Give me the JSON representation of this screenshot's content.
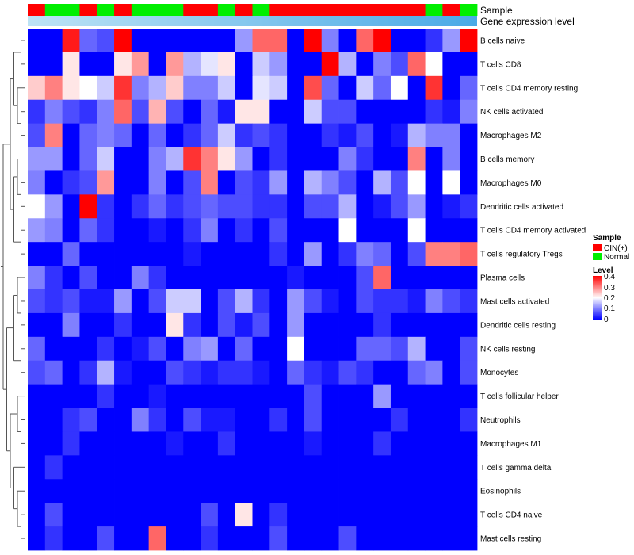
{
  "chart_data": {
    "type": "heatmap",
    "title": "",
    "annotations": [
      {
        "name": "Sample",
        "label": "Sample"
      },
      {
        "name": "Gene expression level",
        "label": "Gene expression level"
      }
    ],
    "sample_groups": [
      "CIN",
      "Normal",
      "Normal",
      "CIN",
      "Normal",
      "CIN",
      "Normal",
      "Normal",
      "Normal",
      "CIN",
      "CIN",
      "Normal",
      "CIN",
      "Normal",
      "CIN",
      "CIN",
      "CIN",
      "CIN",
      "CIN",
      "CIN",
      "CIN",
      "CIN",
      "CIN",
      "Normal",
      "CIN",
      "Normal"
    ],
    "rows": [
      "B cells naive",
      "T cells CD8",
      "T cells CD4 memory resting",
      "NK cells activated",
      "Macrophages M2",
      "B cells memory",
      "Macrophages M0",
      "Dendritic cells activated",
      "T cells CD4 memory activated",
      "T cells regulatory  Tregs",
      "Plasma cells",
      "Mast cells activated",
      "Dendritic cells resting",
      "NK cells resting",
      "Monocytes",
      "T cells follicular helper",
      "Neutrophils",
      "Macrophages M1",
      "T cells gamma delta",
      "Eosinophils",
      "T cells CD4 naive",
      "Mast cells resting"
    ],
    "values": [
      [
        0,
        0,
        0.38,
        0.08,
        0.06,
        0.4,
        0,
        0,
        0,
        0,
        0,
        0,
        0.12,
        0.32,
        0.32,
        0,
        0.4,
        0.1,
        0,
        0.32,
        0.4,
        0,
        0,
        0.04,
        0.12,
        0.4
      ],
      [
        0,
        0,
        0.22,
        0,
        0,
        0.22,
        0.28,
        0,
        0.28,
        0.14,
        0.18,
        0.22,
        0,
        0.16,
        0.12,
        0,
        0,
        0.4,
        0.14,
        0,
        0.1,
        0.06,
        0.32,
        0.2,
        0,
        0
      ],
      [
        0.24,
        0.3,
        0.22,
        0.2,
        0.16,
        0.36,
        0.1,
        0.14,
        0.24,
        0.1,
        0.1,
        0.16,
        0,
        0.18,
        0.16,
        0,
        0.34,
        0.08,
        0,
        0.16,
        0.08,
        0.2,
        0,
        0.36,
        0,
        0.08
      ],
      [
        0.04,
        0.1,
        0.06,
        0.04,
        0.1,
        0.32,
        0.06,
        0.26,
        0.06,
        0,
        0.08,
        0.02,
        0.22,
        0.22,
        0,
        0,
        0.16,
        0.06,
        0.06,
        0,
        0,
        0,
        0,
        0.04,
        0.02,
        0.1
      ],
      [
        0.06,
        0.3,
        0,
        0.08,
        0.1,
        0.08,
        0,
        0.08,
        0,
        0.04,
        0.08,
        0.16,
        0.04,
        0.06,
        0.04,
        0,
        0,
        0.04,
        0.02,
        0.06,
        0,
        0.02,
        0.14,
        0.1,
        0.1,
        0
      ],
      [
        0.12,
        0.12,
        0,
        0.08,
        0.16,
        0,
        0,
        0.1,
        0.14,
        0.36,
        0.3,
        0.22,
        0.12,
        0,
        0.04,
        0,
        0,
        0,
        0.1,
        0.04,
        0,
        0,
        0.3,
        0,
        0.1,
        0
      ],
      [
        0.1,
        0,
        0.04,
        0.06,
        0.28,
        0,
        0,
        0.1,
        0,
        0.06,
        0.3,
        0,
        0.06,
        0.04,
        0.12,
        0,
        0.14,
        0.1,
        0.06,
        0,
        0.14,
        0.06,
        0.2,
        0,
        0.2,
        0
      ],
      [
        0.2,
        0.12,
        0,
        0.4,
        0.04,
        0,
        0.04,
        0.08,
        0.04,
        0.06,
        0.08,
        0.06,
        0.06,
        0.04,
        0.04,
        0,
        0.06,
        0.06,
        0.14,
        0,
        0.02,
        0.06,
        0.12,
        0,
        0.02,
        0.04
      ],
      [
        0.12,
        0.1,
        0,
        0.08,
        0.04,
        0,
        0,
        0.02,
        0,
        0.04,
        0.1,
        0,
        0.04,
        0,
        0.06,
        0,
        0,
        0,
        0.2,
        0,
        0,
        0,
        0.2,
        0,
        0,
        0
      ],
      [
        0,
        0,
        0.08,
        0,
        0,
        0,
        0,
        0,
        0,
        0.02,
        0,
        0,
        0,
        0,
        0.04,
        0,
        0.12,
        0,
        0.04,
        0.1,
        0.08,
        0,
        0.06,
        0.3,
        0.3,
        0.32
      ],
      [
        0.1,
        0.04,
        0,
        0.06,
        0,
        0,
        0.1,
        0.04,
        0,
        0,
        0,
        0,
        0,
        0,
        0,
        0.02,
        0,
        0,
        0,
        0.06,
        0.32,
        0,
        0,
        0,
        0,
        0
      ],
      [
        0.06,
        0.04,
        0.06,
        0.02,
        0.02,
        0.12,
        0,
        0.06,
        0.16,
        0.16,
        0,
        0.06,
        0.14,
        0.04,
        0,
        0.12,
        0.06,
        0.02,
        0,
        0.06,
        0.04,
        0.04,
        0.02,
        0.1,
        0.06,
        0.04
      ],
      [
        0,
        0,
        0.1,
        0,
        0,
        0.04,
        0,
        0,
        0.22,
        0.04,
        0,
        0.06,
        0.02,
        0.06,
        0,
        0.12,
        0,
        0,
        0,
        0,
        0.04,
        0,
        0,
        0,
        0,
        0
      ],
      [
        0.08,
        0,
        0,
        0,
        0.04,
        0,
        0.02,
        0.06,
        0,
        0.1,
        0.12,
        0,
        0.08,
        0,
        0,
        0.2,
        0,
        0,
        0,
        0.08,
        0.08,
        0.06,
        0.14,
        0,
        0,
        0.06
      ],
      [
        0.06,
        0.08,
        0,
        0.04,
        0.14,
        0.02,
        0,
        0,
        0.06,
        0.04,
        0.02,
        0.04,
        0.04,
        0.02,
        0,
        0.08,
        0.04,
        0.02,
        0.06,
        0.04,
        0,
        0,
        0.08,
        0.1,
        0,
        0.06
      ],
      [
        0,
        0,
        0,
        0,
        0.04,
        0,
        0,
        0.02,
        0,
        0,
        0,
        0,
        0,
        0,
        0,
        0,
        0.06,
        0,
        0,
        0,
        0.12,
        0,
        0,
        0,
        0,
        0
      ],
      [
        0,
        0,
        0.04,
        0.06,
        0,
        0,
        0.1,
        0.04,
        0,
        0.06,
        0.02,
        0.02,
        0,
        0,
        0.04,
        0,
        0.06,
        0,
        0,
        0,
        0,
        0.04,
        0,
        0,
        0,
        0.04
      ],
      [
        0,
        0,
        0.04,
        0,
        0,
        0,
        0,
        0,
        0.02,
        0,
        0,
        0.04,
        0,
        0,
        0,
        0,
        0.02,
        0,
        0,
        0,
        0.04,
        0,
        0,
        0,
        0,
        0
      ],
      [
        0,
        0.04,
        0,
        0,
        0,
        0,
        0,
        0,
        0,
        0,
        0,
        0,
        0,
        0,
        0,
        0,
        0,
        0,
        0,
        0,
        0,
        0,
        0,
        0,
        0,
        0
      ],
      [
        0,
        0,
        0,
        0,
        0,
        0,
        0,
        0,
        0,
        0,
        0,
        0,
        0,
        0,
        0,
        0,
        0,
        0,
        0,
        0,
        0,
        0,
        0,
        0,
        0,
        0
      ],
      [
        0,
        0.06,
        0,
        0,
        0,
        0,
        0,
        0,
        0,
        0,
        0.06,
        0,
        0.22,
        0,
        0.04,
        0,
        0,
        0,
        0,
        0,
        0,
        0,
        0,
        0,
        0,
        0
      ],
      [
        0,
        0.04,
        0,
        0,
        0.06,
        0,
        0,
        0.32,
        0,
        0,
        0.04,
        0,
        0,
        0,
        0.06,
        0,
        0,
        0,
        0.06,
        0,
        0,
        0,
        0,
        0,
        0,
        0
      ]
    ],
    "legend": {
      "sample_title": "Sample",
      "sample_entries": [
        {
          "label": "CIN(+)",
          "color": "#ff0000"
        },
        {
          "label": "Normal",
          "color": "#00ee00"
        }
      ],
      "level_title": "Level",
      "level_ticks": [
        "0.4",
        "0.3",
        "0.2",
        "0.1",
        "0"
      ],
      "range": [
        0,
        0.4
      ],
      "gradient": [
        "#0000ff",
        "#ffffff",
        "#ff0000"
      ]
    },
    "colors": {
      "cin": "#ff0000",
      "normal": "#00ee00",
      "expression_bar_start": "#bde3f5",
      "expression_bar_end": "#4aaae6",
      "dendrogram": "#555555"
    }
  }
}
